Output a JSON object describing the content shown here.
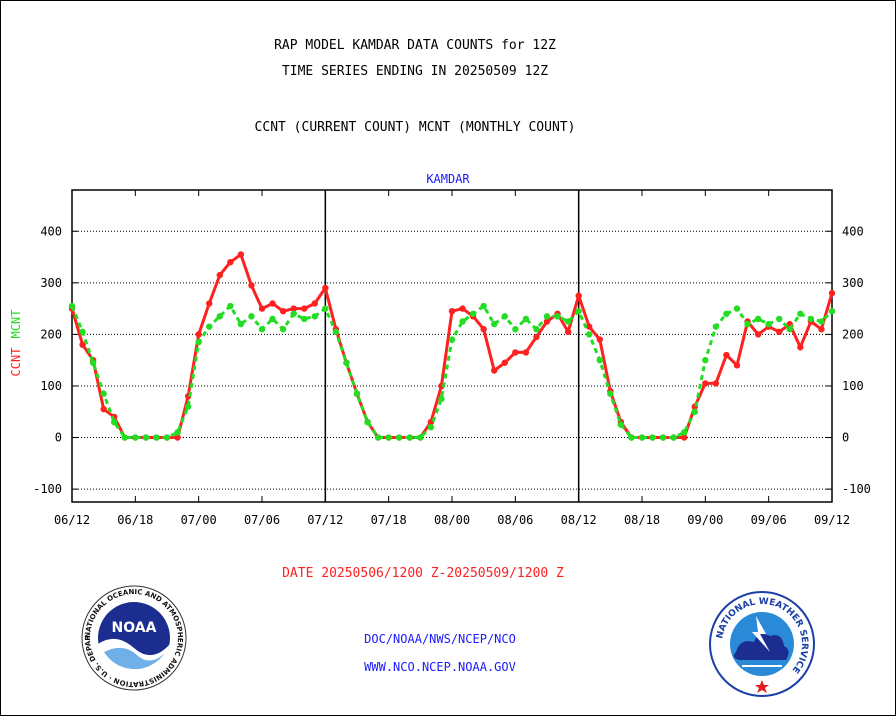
{
  "header": {
    "line1": "RAP MODEL KAMDAR DATA COUNTS for 12Z",
    "line2": "TIME SERIES ENDING IN 20250509 12Z",
    "line3": "CCNT (CURRENT COUNT) MCNT (MONTHLY COUNT)"
  },
  "footer": {
    "date_range": "DATE 20250506/1200 Z-20250509/1200 Z",
    "org": "DOC/NOAA/NWS/NCEP/NCO",
    "url": "WWW.NCO.NCEP.NOAA.GOV"
  },
  "logos": {
    "left": "NOAA",
    "left_ring": "NATIONAL OCEANIC AND ATMOSPHERIC ADMINISTRATION · U.S. DEPARTMENT OF COMMERCE",
    "right_ring": "NATIONAL WEATHER SERVICE"
  },
  "colors": {
    "ccnt": "#ff2020",
    "mcnt": "#22dd22",
    "label": "#1a1aff"
  },
  "chart_data": {
    "type": "line",
    "title": "KAMDAR",
    "ylabel_parts": [
      "CCNT",
      "MCNT"
    ],
    "ylim": [
      -125,
      480
    ],
    "yticks": [
      -100,
      0,
      100,
      200,
      300,
      400
    ],
    "xticks": [
      "06/12",
      "06/18",
      "07/00",
      "07/06",
      "07/12",
      "07/18",
      "08/00",
      "08/06",
      "08/12",
      "08/18",
      "09/00",
      "09/06",
      "09/12"
    ],
    "xlim": [
      0,
      72
    ],
    "day_separators": [
      24,
      48
    ],
    "grid": true,
    "series": [
      {
        "name": "CCNT",
        "color": "#ff2020",
        "x": [
          0,
          1,
          2,
          3,
          4,
          5,
          6,
          7,
          8,
          9,
          10,
          11,
          12,
          13,
          14,
          15,
          16,
          17,
          18,
          19,
          20,
          21,
          22,
          23,
          24,
          25,
          26,
          27,
          28,
          29,
          30,
          31,
          32,
          33,
          34,
          35,
          36,
          37,
          38,
          39,
          40,
          41,
          42,
          43,
          44,
          45,
          46,
          47,
          48,
          49,
          50,
          51,
          52,
          53,
          54,
          55,
          56,
          57,
          58,
          59,
          60,
          61,
          62,
          63,
          64,
          65,
          66,
          67,
          68,
          69,
          70,
          71,
          72
        ],
        "values": [
          250,
          180,
          150,
          55,
          40,
          0,
          0,
          0,
          0,
          0,
          0,
          80,
          200,
          260,
          315,
          340,
          355,
          295,
          250,
          260,
          245,
          250,
          250,
          260,
          290,
          210,
          145,
          85,
          30,
          0,
          0,
          0,
          0,
          0,
          30,
          100,
          245,
          250,
          235,
          210,
          130,
          145,
          165,
          165,
          195,
          225,
          240,
          205,
          275,
          215,
          190,
          90,
          30,
          0,
          0,
          0,
          0,
          0,
          0,
          60,
          105,
          105,
          160,
          140,
          225,
          200,
          215,
          205,
          220,
          175,
          225,
          210,
          280
        ]
      },
      {
        "name": "MCNT",
        "color": "#22dd22",
        "x": [
          0,
          1,
          2,
          3,
          4,
          5,
          6,
          7,
          8,
          9,
          10,
          11,
          12,
          13,
          14,
          15,
          16,
          17,
          18,
          19,
          20,
          21,
          22,
          23,
          24,
          25,
          26,
          27,
          28,
          29,
          30,
          31,
          32,
          33,
          34,
          35,
          36,
          37,
          38,
          39,
          40,
          41,
          42,
          43,
          44,
          45,
          46,
          47,
          48,
          49,
          50,
          51,
          52,
          53,
          54,
          55,
          56,
          57,
          58,
          59,
          60,
          61,
          62,
          63,
          64,
          65,
          66,
          67,
          68,
          69,
          70,
          71,
          72
        ],
        "values": [
          255,
          205,
          145,
          85,
          30,
          0,
          0,
          0,
          0,
          0,
          10,
          60,
          185,
          215,
          235,
          255,
          220,
          235,
          210,
          230,
          210,
          240,
          230,
          235,
          250,
          205,
          145,
          85,
          30,
          0,
          0,
          0,
          0,
          0,
          20,
          75,
          190,
          225,
          240,
          255,
          220,
          235,
          210,
          230,
          210,
          235,
          235,
          225,
          245,
          200,
          150,
          85,
          25,
          0,
          0,
          0,
          0,
          0,
          10,
          50,
          150,
          215,
          240,
          250,
          220,
          230,
          220,
          230,
          210,
          240,
          230,
          225,
          245
        ]
      }
    ]
  }
}
